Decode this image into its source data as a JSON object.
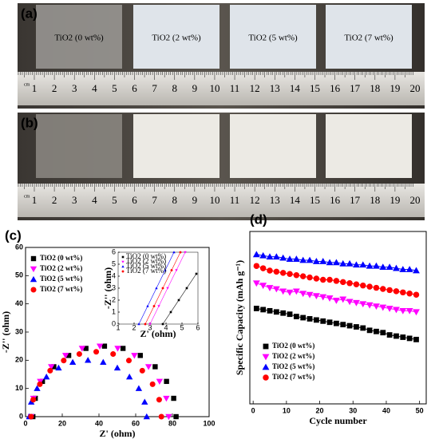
{
  "photos": [
    {
      "panel": "(a)",
      "samples": [
        "TiO2 (0 wt%)",
        "TiO2 (2 wt%)",
        "TiO2 (5 wt%)",
        "TiO2 (7 wt%)"
      ],
      "ruler_unit": "cm",
      "ruler": [
        1,
        2,
        3,
        4,
        5,
        6,
        7,
        8,
        9,
        10,
        11,
        12,
        13,
        14,
        15,
        16,
        17,
        18,
        19,
        20
      ]
    },
    {
      "panel": "(b)",
      "ruler_unit": "cm",
      "ruler": [
        1,
        2,
        3,
        4,
        5,
        6,
        7,
        8,
        9,
        10,
        11,
        12,
        13,
        14,
        15,
        16,
        17,
        18,
        19,
        20
      ]
    }
  ],
  "chart_data": [
    {
      "type": "scatter",
      "panel": "(c)",
      "x_label": "Z' (ohm)",
      "y_label": "-Z'' (ohm)",
      "xlim": [
        0,
        100
      ],
      "xticks": [
        0,
        20,
        40,
        60,
        80,
        100
      ],
      "ylim": [
        0,
        60
      ],
      "yticks": [
        0,
        10,
        20,
        30,
        40,
        50,
        60
      ],
      "legend": "upper left",
      "series": [
        {
          "name": "TiO2 (0 wt%)",
          "color": "#000000",
          "marker": "square",
          "x": [
            4,
            5.3,
            9.2,
            15.4,
            23.5,
            32.9,
            43,
            53.1,
            62.5,
            70.6,
            76.8,
            80.7,
            82
          ],
          "values": [
            0,
            6.5,
            12.5,
            17.7,
            21.7,
            24.2,
            25,
            24.2,
            21.7,
            17.7,
            12.5,
            6.5,
            0
          ]
        },
        {
          "name": "TiO2 (2 wt%)",
          "color": "#ff00ff",
          "marker": "triangle-down",
          "x": [
            3,
            4.3,
            8.0,
            14.0,
            21.8,
            30.8,
            40.5,
            50.2,
            59.3,
            67.0,
            73.0,
            76.7,
            78
          ],
          "values": [
            0,
            6.5,
            12.5,
            17.7,
            21.7,
            24.2,
            25,
            24.2,
            21.7,
            17.7,
            12.5,
            6.5,
            0
          ]
        },
        {
          "name": "TiO2 (5 wt%)",
          "color": "#0000ff",
          "marker": "triangle-up",
          "x": [
            2,
            3.1,
            6.3,
            11.4,
            18,
            25.7,
            34,
            42.3,
            50,
            56.6,
            61.7,
            64.9,
            66
          ],
          "values": [
            0,
            5.2,
            10,
            14.1,
            17.3,
            19.3,
            20,
            19.3,
            17.3,
            14.1,
            10,
            5.2,
            0
          ]
        },
        {
          "name": "TiO2 (7 wt%)",
          "color": "#ff0000",
          "marker": "circle",
          "x": [
            3,
            4.2,
            7.8,
            13.4,
            20.8,
            29.3,
            38.5,
            47.7,
            56.3,
            63.6,
            69.2,
            72.8,
            74
          ],
          "values": [
            0,
            6,
            11.5,
            16.3,
            19.9,
            22.2,
            23,
            22.2,
            19.9,
            16.3,
            11.5,
            6,
            0
          ]
        }
      ]
    },
    {
      "type": "line",
      "x_label": "Z' (ohm)",
      "y_label": "-Z'' (ohm)",
      "xlim": [
        1,
        6
      ],
      "xticks": [
        1,
        2,
        3,
        4,
        5,
        6
      ],
      "ylim": [
        0,
        6
      ],
      "yticks": [
        0,
        1,
        2,
        3,
        4,
        5,
        6
      ],
      "legend": "upper left",
      "series": [
        {
          "name": "TiO2 (0 wt%)",
          "color": "#000000",
          "marker": "square",
          "x": [
            3.8,
            4.3,
            4.8,
            5.3,
            5.9
          ],
          "values": [
            0,
            1,
            2,
            3,
            4.2
          ]
        },
        {
          "name": "TiO2 (2 wt%)",
          "color": "#ff00ff",
          "marker": "triangle-down",
          "x": [
            3.0,
            3.55,
            4.1,
            4.65,
            5.2
          ],
          "values": [
            0,
            1.5,
            3,
            4.5,
            6
          ]
        },
        {
          "name": "TiO2 (5 wt%)",
          "color": "#0000ff",
          "marker": "triangle-up",
          "x": [
            2.3,
            2.85,
            3.4,
            3.95,
            4.5
          ],
          "values": [
            0,
            1.5,
            3,
            4.5,
            6
          ]
        },
        {
          "name": "TiO2 (7 wt%)",
          "color": "#ff0000",
          "marker": "circle",
          "x": [
            2.7,
            3.25,
            3.8,
            4.35,
            4.9
          ],
          "values": [
            0,
            1.5,
            3,
            4.5,
            6
          ]
        }
      ]
    },
    {
      "type": "line",
      "panel": "(d)",
      "x_label": "Cycle number",
      "y_label": "Specific Capacity (mAh g⁻¹)",
      "xlim": [
        -1,
        52
      ],
      "xticks": [
        0,
        10,
        20,
        30,
        40,
        50
      ],
      "ylim": [
        60,
        210
      ],
      "legend": "lower left",
      "x": [
        1,
        3,
        5,
        7,
        9,
        11,
        13,
        15,
        17,
        19,
        21,
        23,
        25,
        27,
        29,
        31,
        33,
        35,
        37,
        39,
        41,
        43,
        45,
        47,
        49
      ],
      "series": [
        {
          "name": "TiO2 (0 wt%)",
          "color": "#000000",
          "marker": "square",
          "values": [
            143,
            142,
            141,
            140,
            139,
            138,
            136,
            135,
            134,
            133,
            132,
            131,
            130,
            129,
            128,
            127,
            126,
            124,
            123,
            122,
            120,
            119,
            118,
            117,
            116
          ]
        },
        {
          "name": "TiO2 (2 wt%)",
          "color": "#ff00ff",
          "marker": "triangle-down",
          "values": [
            165,
            163,
            161,
            160,
            158,
            157,
            158,
            156,
            155,
            154,
            153,
            152,
            150,
            151,
            149,
            148,
            147,
            146,
            145,
            144,
            143,
            142,
            141,
            141,
            140
          ]
        },
        {
          "name": "TiO2 (5 wt%)",
          "color": "#0000ff",
          "marker": "triangle-up",
          "values": [
            190,
            189,
            188,
            188,
            187,
            186,
            186,
            185,
            185,
            184,
            184,
            183,
            183,
            182,
            182,
            181,
            181,
            180,
            180,
            179,
            179,
            178,
            177,
            177,
            176
          ]
        },
        {
          "name": "TiO2 (7 wt%)",
          "color": "#ff0000",
          "marker": "circle",
          "values": [
            180,
            178,
            176,
            175,
            174,
            173,
            172,
            171,
            170,
            169,
            168,
            168,
            167,
            166,
            165,
            164,
            163,
            162,
            161,
            160,
            159,
            158,
            157,
            156,
            155
          ]
        }
      ]
    }
  ]
}
